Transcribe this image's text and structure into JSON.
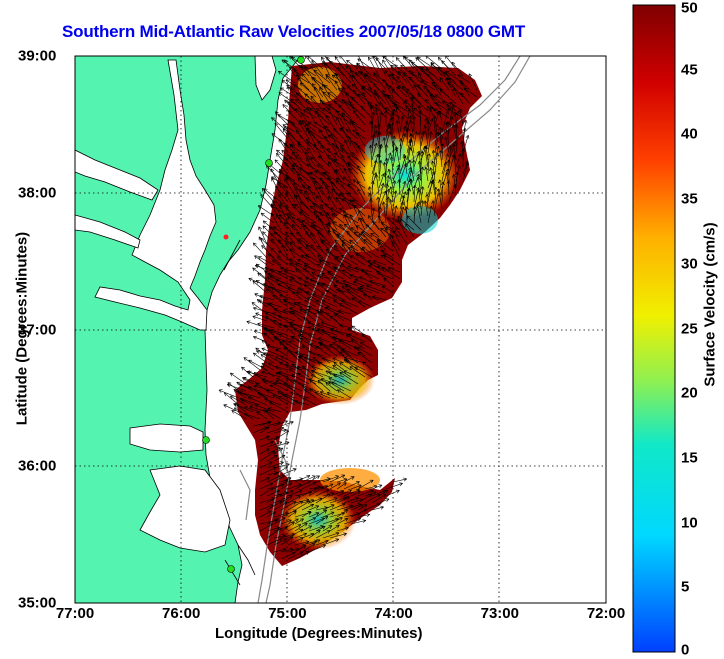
{
  "title": "Southern Mid-Atlantic Raw Velocities 2007/05/18 0800 GMT",
  "xlabel": "Longitude (Degrees:Minutes)",
  "ylabel": "Latitude (Degrees:Minutes)",
  "colorbar_label": "Surface Velocity (cm/s)",
  "chart_data": {
    "type": "heatmap",
    "x_ticks": [
      "77:00",
      "76:00",
      "75:00",
      "74:00",
      "73:00",
      "72:00"
    ],
    "y_ticks": [
      "35:00",
      "36:00",
      "37:00",
      "38:00",
      "39:00"
    ],
    "xlim": [
      -77,
      -72
    ],
    "ylim": [
      35,
      39
    ],
    "colorbar": {
      "ticks": [
        "0",
        "5",
        "10",
        "15",
        "20",
        "25",
        "30",
        "35",
        "40",
        "45",
        "50"
      ],
      "range": [
        0,
        50
      ]
    },
    "grid": "dotted",
    "colors": {
      "land": "#55f3b0",
      "coastline": "#000000",
      "bathymetry": "#888888",
      "title": "#0000ee",
      "station": "#22dd22"
    }
  }
}
